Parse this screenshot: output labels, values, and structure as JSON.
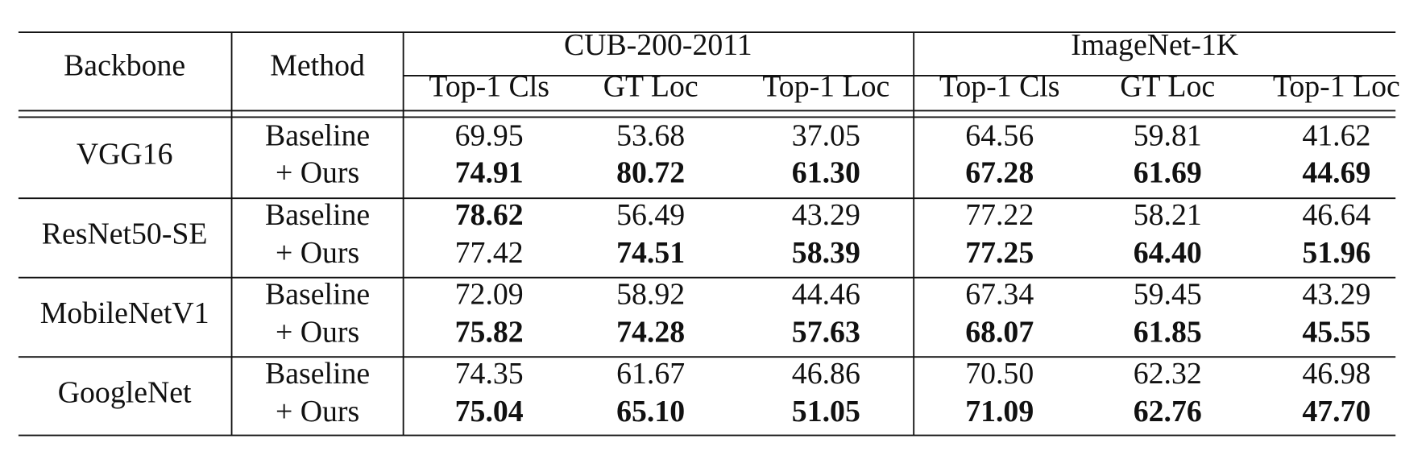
{
  "table": {
    "header": {
      "backbone": "Backbone",
      "method": "Method",
      "groups": [
        {
          "name": "CUB-200-2011",
          "columns": [
            "Top-1 Cls",
            "GT Loc",
            "Top-1 Loc"
          ]
        },
        {
          "name": "ImageNet-1K",
          "columns": [
            "Top-1 Cls",
            "GT Loc",
            "Top-1 Loc"
          ]
        }
      ]
    },
    "rows": [
      {
        "backbone": "VGG16",
        "entries": [
          {
            "method": "Baseline",
            "values": [
              "69.95",
              "53.68",
              "37.05",
              "64.56",
              "59.81",
              "41.62"
            ],
            "bold": [
              false,
              false,
              false,
              false,
              false,
              false
            ]
          },
          {
            "method": "+ Ours",
            "values": [
              "74.91",
              "80.72",
              "61.30",
              "67.28",
              "61.69",
              "44.69"
            ],
            "bold": [
              true,
              true,
              true,
              true,
              true,
              true
            ]
          }
        ]
      },
      {
        "backbone": "ResNet50-SE",
        "entries": [
          {
            "method": "Baseline",
            "values": [
              "78.62",
              "56.49",
              "43.29",
              "77.22",
              "58.21",
              "46.64"
            ],
            "bold": [
              true,
              false,
              false,
              false,
              false,
              false
            ]
          },
          {
            "method": "+ Ours",
            "values": [
              "77.42",
              "74.51",
              "58.39",
              "77.25",
              "64.40",
              "51.96"
            ],
            "bold": [
              false,
              true,
              true,
              true,
              true,
              true
            ]
          }
        ]
      },
      {
        "backbone": "MobileNetV1",
        "entries": [
          {
            "method": "Baseline",
            "values": [
              "72.09",
              "58.92",
              "44.46",
              "67.34",
              "59.45",
              "43.29"
            ],
            "bold": [
              false,
              false,
              false,
              false,
              false,
              false
            ]
          },
          {
            "method": "+ Ours",
            "values": [
              "75.82",
              "74.28",
              "57.63",
              "68.07",
              "61.85",
              "45.55"
            ],
            "bold": [
              true,
              true,
              true,
              true,
              true,
              true
            ]
          }
        ]
      },
      {
        "backbone": "GoogleNet",
        "entries": [
          {
            "method": "Baseline",
            "values": [
              "74.35",
              "61.67",
              "46.86",
              "70.50",
              "62.32",
              "46.98"
            ],
            "bold": [
              false,
              false,
              false,
              false,
              false,
              false
            ]
          },
          {
            "method": "+ Ours",
            "values": [
              "75.04",
              "65.10",
              "51.05",
              "71.09",
              "62.76",
              "47.70"
            ],
            "bold": [
              true,
              true,
              true,
              true,
              true,
              true
            ]
          }
        ]
      }
    ]
  }
}
